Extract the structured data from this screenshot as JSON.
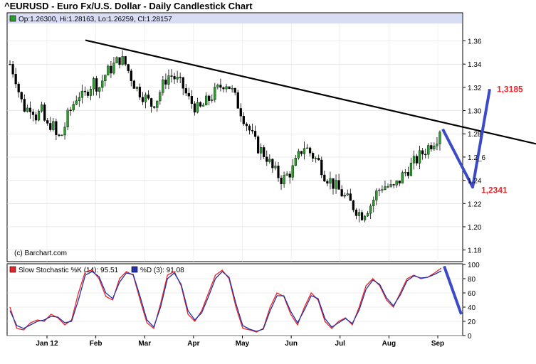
{
  "title": "^EURUSD - Euro Fx/U.S. Dollar - Daily Candlestick Chart",
  "price_legend": "Op:1.26300, Hi:1.28163, Lo:1.26259, Cl:1.28157",
  "copyright": "(c) Barchart.com",
  "stoch_legend_k": "Slow Stochastic %K (14): 95.51",
  "stoch_legend_d": "%D (3): 91.08",
  "colors": {
    "up_candle": "#2a9d2a",
    "down_candle": "#000000",
    "pctK": "#e8262a",
    "pctD": "#2233aa",
    "annotation_line": "#3b4bc8",
    "annotation_text": "#e8262a",
    "legend_bg": "#d8dcf5"
  },
  "annotations": {
    "low_label": "1,2341",
    "high_label": "1,3185",
    "low_value": 1.2341,
    "high_value": 1.3185
  },
  "chart_data": [
    {
      "type": "candlestick",
      "series": "^EURUSD daily",
      "ylim": [
        1.17,
        1.375
      ],
      "yticks": [
        "1.36",
        "1.34",
        "1.32",
        "1.30",
        "1.28",
        "1.26",
        "1.24",
        "1.22",
        "1.20",
        "1.18"
      ],
      "yticks_visible": [
        "1.36",
        "1.34",
        "1.32",
        "1.30",
        "1.28",
        "1.2_6",
        "1.24",
        "1.22",
        "1.20",
        "1.18"
      ],
      "xticks": [
        "Jan 12",
        "Feb",
        "Mar",
        "Apr",
        "May",
        "Jun",
        "Jul",
        "Aug",
        "Sep"
      ],
      "close_path": [
        1.34,
        1.33,
        1.31,
        1.3,
        1.305,
        1.295,
        1.3,
        1.285,
        1.29,
        1.275,
        1.28,
        1.295,
        1.305,
        1.315,
        1.31,
        1.32,
        1.325,
        1.32,
        1.33,
        1.335,
        1.34,
        1.345,
        1.34,
        1.33,
        1.32,
        1.315,
        1.31,
        1.305,
        1.31,
        1.32,
        1.33,
        1.33,
        1.325,
        1.32,
        1.31,
        1.305,
        1.3,
        1.305,
        1.31,
        1.315,
        1.32,
        1.325,
        1.32,
        1.31,
        1.3,
        1.29,
        1.28,
        1.27,
        1.265,
        1.26,
        1.25,
        1.245,
        1.24,
        1.245,
        1.25,
        1.26,
        1.27,
        1.265,
        1.26,
        1.255,
        1.245,
        1.24,
        1.235,
        1.23,
        1.225,
        1.22,
        1.215,
        1.21,
        1.215,
        1.22,
        1.23,
        1.235,
        1.235,
        1.232,
        1.238,
        1.245,
        1.25,
        1.255,
        1.26,
        1.265,
        1.27,
        1.275,
        1.28
      ],
      "trendline": {
        "start_value": 1.36,
        "end_value": 1.265
      },
      "last": {
        "open": 1.263,
        "high": 1.28163,
        "low": 1.26259,
        "close": 1.28157
      }
    },
    {
      "type": "line",
      "ylim": [
        0,
        100
      ],
      "yticks": [
        "100",
        "80",
        "60",
        "40",
        "20",
        "0"
      ],
      "series": [
        {
          "name": "Slow Stochastic %K (14)",
          "values": [
            40,
            10,
            8,
            18,
            22,
            20,
            30,
            25,
            15,
            22,
            60,
            90,
            92,
            80,
            55,
            50,
            80,
            90,
            85,
            50,
            18,
            10,
            45,
            85,
            90,
            70,
            30,
            20,
            35,
            60,
            85,
            92,
            80,
            40,
            10,
            8,
            5,
            10,
            40,
            60,
            55,
            30,
            15,
            40,
            60,
            50,
            20,
            10,
            20,
            25,
            15,
            40,
            70,
            80,
            70,
            50,
            40,
            60,
            80,
            85,
            80,
            82,
            88,
            95
          ]
        },
        {
          "name": "%D (3)",
          "values": [
            35,
            14,
            10,
            15,
            20,
            22,
            27,
            26,
            18,
            20,
            50,
            85,
            90,
            83,
            60,
            52,
            75,
            88,
            86,
            55,
            22,
            12,
            40,
            80,
            88,
            72,
            35,
            22,
            32,
            55,
            80,
            90,
            82,
            45,
            14,
            9,
            6,
            9,
            35,
            56,
            56,
            34,
            18,
            36,
            56,
            52,
            24,
            12,
            18,
            24,
            17,
            36,
            65,
            78,
            72,
            53,
            42,
            57,
            77,
            84,
            81,
            82,
            86,
            91
          ]
        }
      ],
      "projection": {
        "from_value": 95.51,
        "to_value": 30
      }
    }
  ]
}
